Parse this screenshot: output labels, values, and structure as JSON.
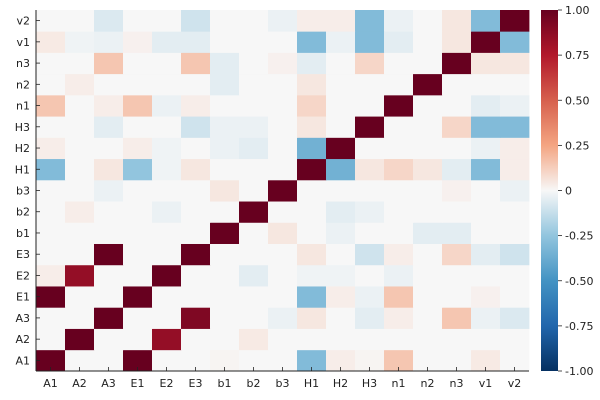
{
  "chart_data": {
    "type": "heatmap",
    "title": "",
    "xlabel": "",
    "ylabel": "",
    "labels": [
      "A1",
      "A2",
      "A3",
      "E1",
      "E2",
      "E3",
      "b1",
      "b2",
      "b3",
      "H1",
      "H2",
      "H3",
      "n1",
      "n2",
      "n3",
      "v1",
      "v2"
    ],
    "colorbar": {
      "range": [
        -1.0,
        1.0
      ],
      "ticks": [
        -1.0,
        -0.75,
        -0.5,
        -0.25,
        0,
        0.25,
        0.5,
        0.75,
        1.0
      ],
      "tick_labels": [
        "-1.00",
        "-0.75",
        "-0.50",
        "-0.25",
        "0",
        "0.25",
        "0.50",
        "0.75",
        "1.00"
      ],
      "colormap": "RdBu"
    },
    "colorscale": [
      [
        -1.0,
        "#053061"
      ],
      [
        -0.75,
        "#2166ac"
      ],
      [
        -0.5,
        "#4393c3"
      ],
      [
        -0.25,
        "#92c5de"
      ],
      [
        0,
        "#f7f7f7"
      ],
      [
        0.25,
        "#f4a582"
      ],
      [
        0.5,
        "#d6604d"
      ],
      [
        0.75,
        "#b2182b"
      ],
      [
        1.0,
        "#67001f"
      ]
    ],
    "grid": false,
    "values": [
      [
        1.0,
        0.0,
        0.0,
        1.0,
        0.0,
        0.0,
        0.01,
        0.0,
        0.0,
        -0.3,
        0.03,
        0.01,
        0.15,
        0.0,
        0.0,
        0.04,
        0.0
      ],
      [
        0.0,
        1.0,
        0.0,
        0.0,
        0.85,
        0.0,
        0.0,
        0.04,
        0.0,
        0.0,
        0.0,
        0.0,
        0.0,
        0.0,
        0.0,
        0.0,
        0.0
      ],
      [
        0.0,
        0.0,
        1.0,
        0.0,
        0.0,
        0.92,
        0.0,
        0.0,
        -0.03,
        0.05,
        0.0,
        -0.05,
        0.03,
        0.0,
        0.15,
        -0.03,
        -0.07
      ],
      [
        1.0,
        0.0,
        0.0,
        1.0,
        0.0,
        0.0,
        0.0,
        0.0,
        0.0,
        -0.3,
        0.03,
        -0.03,
        0.15,
        0.0,
        0.0,
        0.02,
        0.0
      ],
      [
        0.03,
        0.85,
        0.0,
        0.0,
        1.0,
        0.0,
        0.0,
        -0.05,
        0.0,
        -0.02,
        -0.02,
        0.0,
        -0.03,
        0.0,
        0.0,
        0.0,
        0.0
      ],
      [
        0.0,
        0.0,
        1.0,
        0.0,
        0.0,
        1.0,
        0.0,
        0.0,
        0.0,
        0.05,
        0.0,
        -0.1,
        0.03,
        0.0,
        0.1,
        -0.05,
        -0.1
      ],
      [
        0.0,
        0.0,
        0.0,
        0.0,
        0.0,
        0.0,
        1.0,
        0.0,
        0.05,
        0.0,
        -0.03,
        0.0,
        0.0,
        -0.05,
        -0.05,
        0.0,
        0.0
      ],
      [
        0.0,
        0.03,
        0.0,
        0.0,
        -0.03,
        0.0,
        0.0,
        1.0,
        0.0,
        0.0,
        -0.05,
        -0.03,
        0.0,
        0.0,
        0.0,
        0.0,
        0.0
      ],
      [
        0.0,
        0.0,
        -0.03,
        0.0,
        0.0,
        0.0,
        0.05,
        0.0,
        1.0,
        0.0,
        0.0,
        0.0,
        0.0,
        0.0,
        0.02,
        0.0,
        -0.03
      ],
      [
        -0.3,
        0.0,
        0.05,
        -0.25,
        -0.02,
        0.05,
        0.0,
        0.0,
        0.0,
        1.0,
        -0.35,
        0.05,
        0.1,
        0.05,
        -0.05,
        -0.3,
        0.03
      ],
      [
        0.03,
        0.0,
        0.0,
        0.03,
        -0.02,
        0.0,
        -0.03,
        -0.05,
        0.0,
        -0.35,
        1.0,
        0.0,
        0.0,
        0.0,
        0.0,
        -0.03,
        0.03
      ],
      [
        0.0,
        0.0,
        -0.05,
        0.0,
        0.0,
        -0.1,
        -0.03,
        -0.03,
        0.0,
        0.05,
        0.0,
        1.0,
        0.0,
        0.0,
        0.1,
        -0.3,
        -0.3
      ],
      [
        0.15,
        0.0,
        0.03,
        0.15,
        -0.03,
        0.03,
        0.0,
        0.0,
        0.0,
        0.1,
        0.0,
        0.0,
        1.0,
        0.0,
        0.0,
        -0.05,
        -0.03
      ],
      [
        0.0,
        0.03,
        0.0,
        0.0,
        0.0,
        0.0,
        -0.05,
        0.0,
        0.0,
        0.05,
        0.0,
        0.0,
        0.0,
        1.0,
        0.0,
        0.0,
        0.0
      ],
      [
        0.0,
        0.0,
        0.15,
        0.0,
        0.0,
        0.15,
        -0.05,
        0.0,
        0.02,
        -0.05,
        0.0,
        0.1,
        0.0,
        0.0,
        1.0,
        0.05,
        0.05
      ],
      [
        0.04,
        -0.02,
        -0.03,
        0.02,
        -0.05,
        -0.05,
        0.0,
        0.0,
        0.0,
        -0.3,
        -0.03,
        -0.3,
        -0.05,
        0.0,
        0.05,
        1.0,
        -0.3
      ],
      [
        0.0,
        0.0,
        -0.07,
        0.0,
        0.0,
        -0.1,
        0.0,
        0.0,
        -0.03,
        0.03,
        0.03,
        -0.3,
        -0.03,
        0.0,
        0.05,
        -0.3,
        1.0
      ]
    ]
  }
}
